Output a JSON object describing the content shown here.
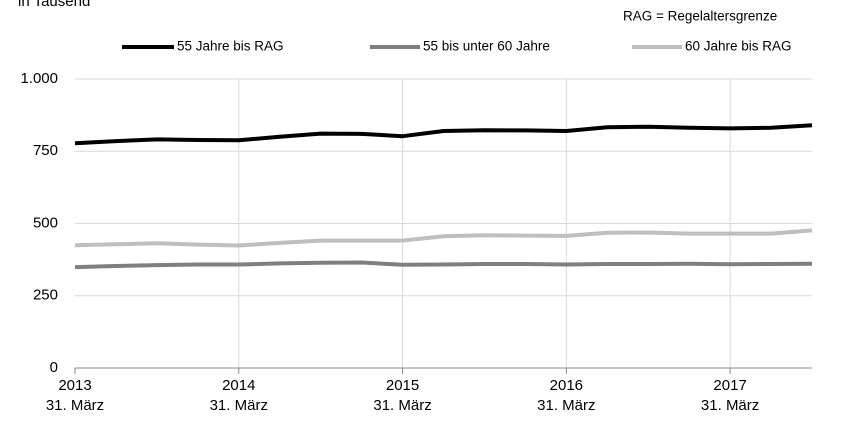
{
  "chart_data": {
    "type": "line",
    "y_label": "in Tausend",
    "annotation": "RAG = Regelaltersgrenze",
    "categories": [
      "2013",
      null,
      null,
      null,
      "2014",
      null,
      null,
      null,
      "2015",
      null,
      null,
      null,
      "2016",
      null,
      null,
      null,
      "2017",
      null,
      null
    ],
    "category_sublabels": [
      "31. März",
      null,
      null,
      null,
      "31. März",
      null,
      null,
      null,
      "31. März",
      null,
      null,
      null,
      "31. März",
      null,
      null,
      null,
      "31. März",
      null,
      null
    ],
    "series": [
      {
        "name": "55 Jahre bis RAG",
        "color": "#000000",
        "values": [
          778,
          785,
          791,
          789,
          788,
          800,
          811,
          810,
          802,
          820,
          823,
          822,
          820,
          833,
          835,
          831,
          829,
          831,
          840
        ]
      },
      {
        "name": "55 bis unter 60 Jahre",
        "color": "#7f7f7f",
        "values": [
          349,
          353,
          356,
          358,
          358,
          362,
          364,
          365,
          357,
          358,
          360,
          360,
          358,
          360,
          360,
          361,
          359,
          360,
          361
        ]
      },
      {
        "name": "60 Jahre bis RAG",
        "color": "#bfbfbf",
        "values": [
          425,
          428,
          432,
          427,
          424,
          433,
          441,
          441,
          441,
          456,
          459,
          458,
          457,
          468,
          469,
          465,
          465,
          465,
          476
        ]
      }
    ],
    "ylim": [
      0,
      1000
    ],
    "yticks": [
      0,
      250,
      500,
      750,
      {
        "value": 1000,
        "label": "1.000"
      }
    ],
    "grid": true,
    "legend": "top"
  }
}
